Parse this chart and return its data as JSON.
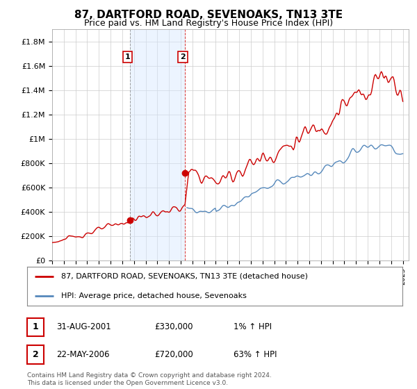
{
  "title": "87, DARTFORD ROAD, SEVENOAKS, TN13 3TE",
  "subtitle": "Price paid vs. HM Land Registry's House Price Index (HPI)",
  "title_fontsize": 11,
  "subtitle_fontsize": 9,
  "ylim": [
    0,
    1900000
  ],
  "xlim_start": 1995.0,
  "xlim_end": 2025.5,
  "yticks": [
    0,
    200000,
    400000,
    600000,
    800000,
    1000000,
    1200000,
    1400000,
    1600000,
    1800000
  ],
  "ytick_labels": [
    "£0",
    "£200K",
    "£400K",
    "£600K",
    "£800K",
    "£1M",
    "£1.2M",
    "£1.4M",
    "£1.6M",
    "£1.8M"
  ],
  "sale1_year": 2001.67,
  "sale1_price": 330000,
  "sale1_label": "1",
  "sale1_date": "31-AUG-2001",
  "sale1_display": "£330,000",
  "sale1_hpi": "1% ↑ HPI",
  "sale2_year": 2006.38,
  "sale2_price": 720000,
  "sale2_label": "2",
  "sale2_date": "22-MAY-2006",
  "sale2_display": "£720,000",
  "sale2_hpi": "63% ↑ HPI",
  "shade_color": "#d6e8ff",
  "red_line_color": "#cc0000",
  "blue_line_color": "#5588bb",
  "marker_color": "#cc0000",
  "legend_line1": "87, DARTFORD ROAD, SEVENOAKS, TN13 3TE (detached house)",
  "legend_line2": "HPI: Average price, detached house, Sevenoaks",
  "footer": "Contains HM Land Registry data © Crown copyright and database right 2024.\nThis data is licensed under the Open Government Licence v3.0.",
  "background_color": "#ffffff",
  "grid_color": "#cccccc"
}
